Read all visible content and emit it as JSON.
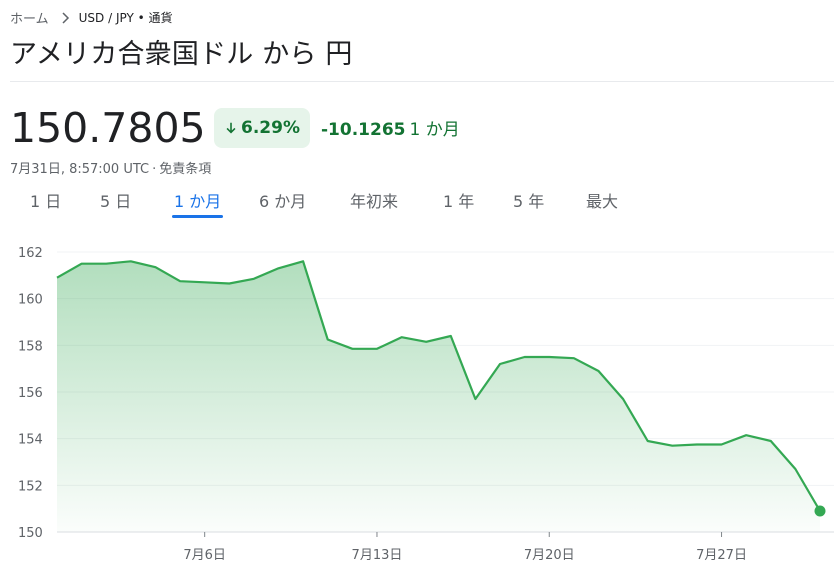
{
  "breadcrumb": {
    "home": "ホーム",
    "current": "USD / JPY • 通貨"
  },
  "title": "アメリカ合衆国ドル から 円",
  "quote": {
    "price": "150.7805",
    "change_percent": "6.29%",
    "change_abs": "-10.1265",
    "change_period": "1 か月",
    "timestamp": "7月31日, 8:57:00 UTC",
    "disclaimer": "免責条項"
  },
  "tabs": [
    {
      "label": "1 日",
      "active": false
    },
    {
      "label": "5 日",
      "active": false
    },
    {
      "label": "1 か月",
      "active": true
    },
    {
      "label": "6 か月",
      "active": false
    },
    {
      "label": "年初来",
      "active": false
    },
    {
      "label": "1 年",
      "active": false
    },
    {
      "label": "5 年",
      "active": false
    },
    {
      "label": "最大",
      "active": false
    }
  ],
  "colors": {
    "accent": "#1a73e8",
    "down_text": "#137333",
    "down_bg": "#e6f4ea",
    "line": "#34a853"
  },
  "chart_data": {
    "type": "area",
    "ylim": [
      150,
      162
    ],
    "yticks": [
      162,
      160,
      158,
      156,
      154,
      152,
      150
    ],
    "x_start": "2024-06-30",
    "x_end": "2024-07-31",
    "xticks": [
      {
        "date": "2024-07-06",
        "label": "7月6日"
      },
      {
        "date": "2024-07-13",
        "label": "7月13日"
      },
      {
        "date": "2024-07-20",
        "label": "7月20日"
      },
      {
        "date": "2024-07-27",
        "label": "7月27日"
      }
    ],
    "series": [
      {
        "points": [
          {
            "date": "2024-06-30",
            "value": 160.9
          },
          {
            "date": "2024-07-01",
            "value": 161.5
          },
          {
            "date": "2024-07-02",
            "value": 161.5
          },
          {
            "date": "2024-07-03",
            "value": 161.6
          },
          {
            "date": "2024-07-04",
            "value": 161.35
          },
          {
            "date": "2024-07-05",
            "value": 160.75
          },
          {
            "date": "2024-07-06",
            "value": 160.7
          },
          {
            "date": "2024-07-07",
            "value": 160.65
          },
          {
            "date": "2024-07-08",
            "value": 160.85
          },
          {
            "date": "2024-07-09",
            "value": 161.3
          },
          {
            "date": "2024-07-10",
            "value": 161.6
          },
          {
            "date": "2024-07-11",
            "value": 158.25
          },
          {
            "date": "2024-07-12",
            "value": 157.85
          },
          {
            "date": "2024-07-13",
            "value": 157.85
          },
          {
            "date": "2024-07-14",
            "value": 158.35
          },
          {
            "date": "2024-07-15",
            "value": 158.15
          },
          {
            "date": "2024-07-16",
            "value": 158.4
          },
          {
            "date": "2024-07-17",
            "value": 155.7
          },
          {
            "date": "2024-07-18",
            "value": 157.2
          },
          {
            "date": "2024-07-19",
            "value": 157.5
          },
          {
            "date": "2024-07-20",
            "value": 157.5
          },
          {
            "date": "2024-07-21",
            "value": 157.45
          },
          {
            "date": "2024-07-22",
            "value": 156.9
          },
          {
            "date": "2024-07-23",
            "value": 155.7
          },
          {
            "date": "2024-07-24",
            "value": 153.9
          },
          {
            "date": "2024-07-25",
            "value": 153.7
          },
          {
            "date": "2024-07-26",
            "value": 153.75
          },
          {
            "date": "2024-07-27",
            "value": 153.75
          },
          {
            "date": "2024-07-28",
            "value": 154.15
          },
          {
            "date": "2024-07-29",
            "value": 153.9
          },
          {
            "date": "2024-07-30",
            "value": 152.7
          },
          {
            "date": "2024-07-31",
            "value": 150.9
          }
        ]
      }
    ],
    "grid": true
  }
}
